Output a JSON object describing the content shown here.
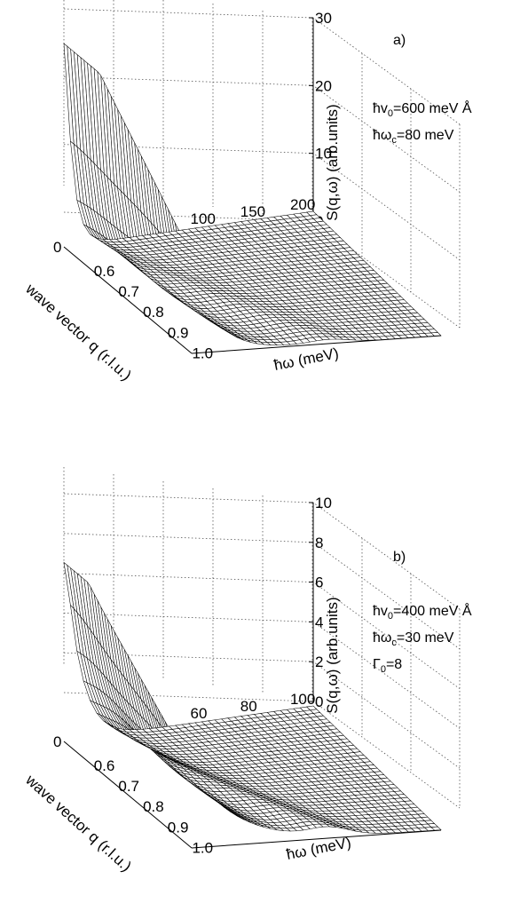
{
  "chart_data": [
    {
      "type": "surface",
      "panel_label": "a)",
      "zlabel": "S(q,ω) (arb.units)",
      "xlabel": "ħω  (meV)",
      "ylabel": "wave vector q (r.l.u.)",
      "zlim": [
        0,
        30
      ],
      "z_ticks": [
        "0",
        "10",
        "20",
        "30"
      ],
      "z_base_tick": "0",
      "omega_ticks": [
        "100",
        "150",
        "200"
      ],
      "q_ticks": [
        "0.6",
        "0.7",
        "0.8",
        "0.9",
        "1.0"
      ],
      "omega_range": [
        0,
        200
      ],
      "q_range": [
        0.55,
        1.0
      ],
      "params": [
        {
          "pre": "ħv",
          "sub": "0",
          "post": "=600 meV Å"
        },
        {
          "pre": "ħω",
          "sub": "c",
          "post": "=80 meV"
        }
      ],
      "peak_clipped_at": 30
    },
    {
      "type": "surface",
      "panel_label": "b)",
      "zlabel": "S(q,ω) (arb.units)",
      "xlabel": "ħω (meV)",
      "ylabel": "wave vector q (r.l.u.)",
      "zlim": [
        0,
        10
      ],
      "z_ticks": [
        "0",
        "2",
        "4",
        "6",
        "8",
        "10"
      ],
      "z_base_tick": "0",
      "omega_ticks": [
        "60",
        "80",
        "100"
      ],
      "q_ticks": [
        "0.6",
        "0.7",
        "0.8",
        "0.9",
        "1.0"
      ],
      "omega_range": [
        0,
        100
      ],
      "q_range": [
        0.55,
        1.0
      ],
      "params": [
        {
          "pre": "ħv",
          "sub": "0",
          "post": "=400 meV Å"
        },
        {
          "pre": "ħω",
          "sub": "c",
          "post": "=30 meV"
        },
        {
          "pre": "Γ",
          "sub": "0",
          "post": "=8"
        }
      ],
      "peak_clipped_at": 9
    }
  ]
}
